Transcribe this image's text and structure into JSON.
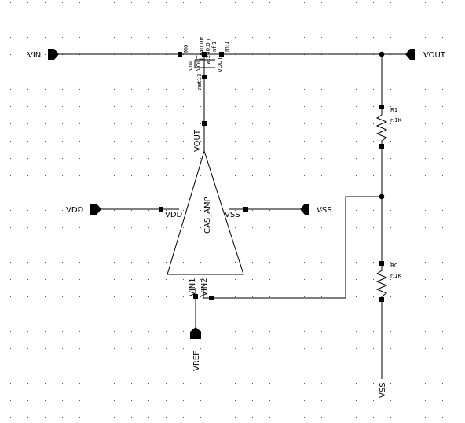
{
  "schematic": {
    "pins": {
      "vin": "VIN",
      "vout": "VOUT",
      "vdd": "VDD",
      "vss": "VSS",
      "vref": "VREF",
      "vss_bottom": "VSS"
    },
    "amplifier": {
      "name": "CAS_AMP",
      "port_out": "VOUT",
      "port_vdd": "VDD",
      "port_vss": "VSS",
      "port_vin1": "VIN1",
      "port_vin2": "VIN2"
    },
    "transistor": {
      "instance": "M0",
      "port_vin": "VIN",
      "port_vout_top": "VOUT",
      "port_vout_bottom": "VOUT",
      "net": "net13",
      "length": "l:340.0n",
      "width": "w:240.0n",
      "nf": "nf:1",
      "m": "m:1"
    },
    "resistors": [
      {
        "instance": "R1",
        "value": "r:1K"
      },
      {
        "instance": "R0",
        "value": "r:1K"
      }
    ]
  }
}
